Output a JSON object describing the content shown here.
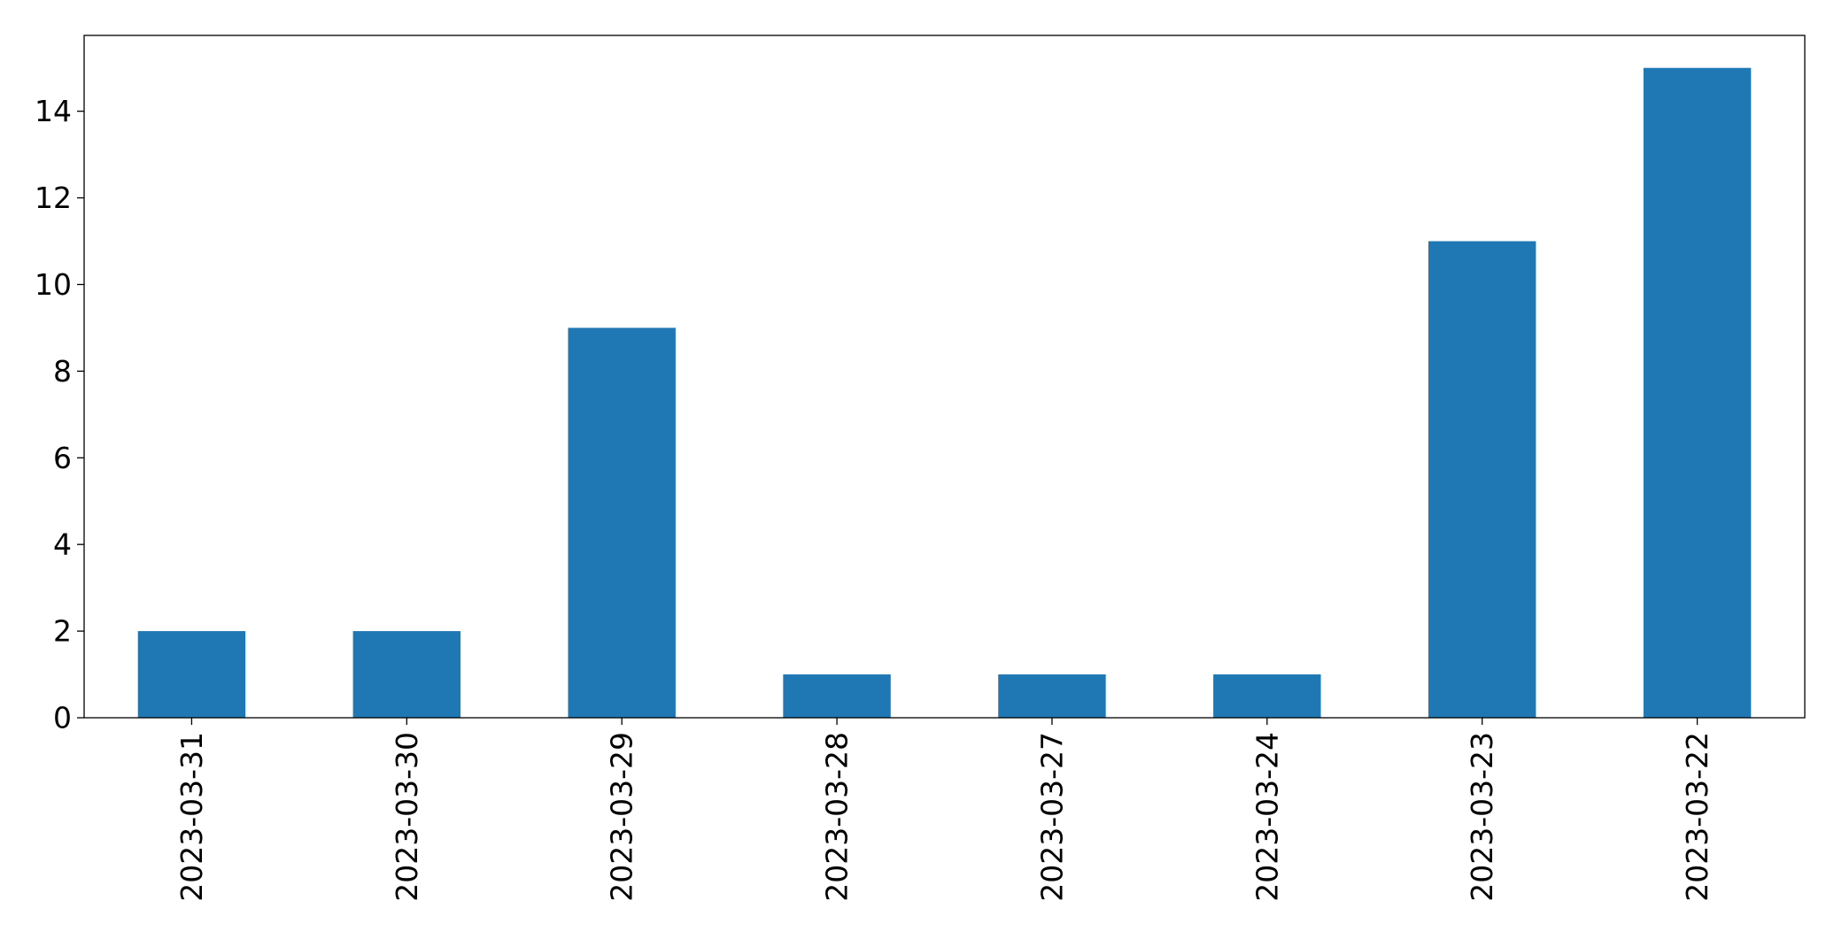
{
  "chart_data": {
    "type": "bar",
    "title": "",
    "xlabel": "",
    "ylabel": "",
    "categories": [
      "2023-03-31",
      "2023-03-30",
      "2023-03-29",
      "2023-03-28",
      "2023-03-27",
      "2023-03-24",
      "2023-03-23",
      "2023-03-22"
    ],
    "values": [
      2,
      2,
      9,
      1,
      1,
      1,
      11,
      15
    ],
    "ylim": [
      0,
      15.75
    ],
    "yticks": [
      0,
      2,
      4,
      6,
      8,
      10,
      12,
      14
    ],
    "grid": false,
    "legend": "none",
    "bar_color": "#1f77b4",
    "x_tick_rotation": "vertical"
  }
}
